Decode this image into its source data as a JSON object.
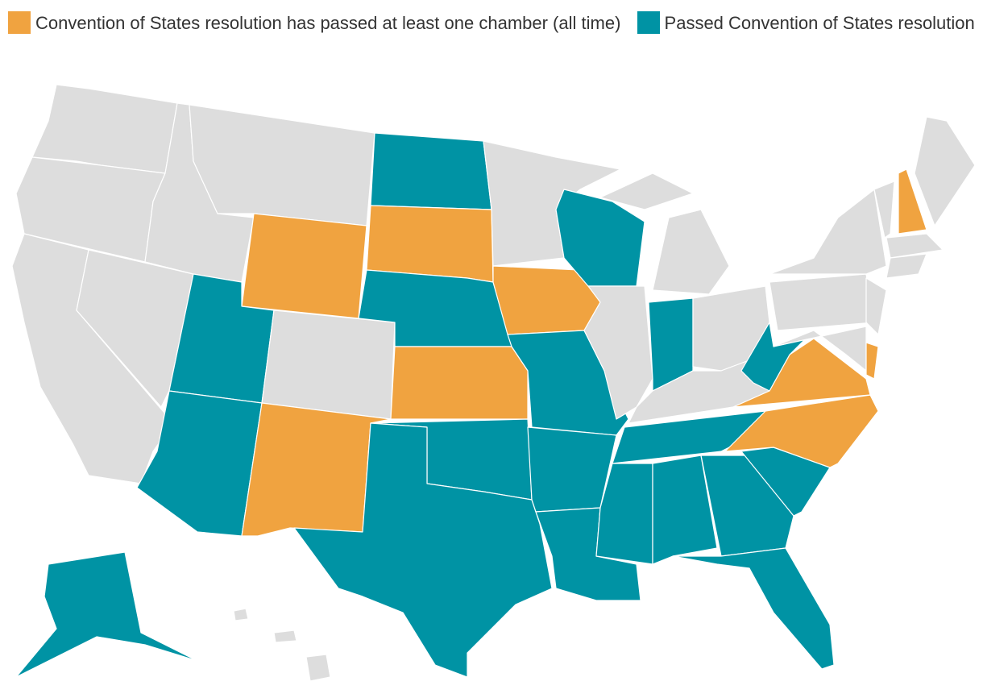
{
  "legend": {
    "items": [
      {
        "name": "Convention of States resolution has passed at least one chamber (all time)",
        "color": "#f0a340"
      },
      {
        "name": "Passed Convention of States resolution",
        "color": "#0093a4"
      }
    ]
  },
  "map": {
    "base_color": "#dddddd",
    "border_color": "#ffffff"
  }
}
